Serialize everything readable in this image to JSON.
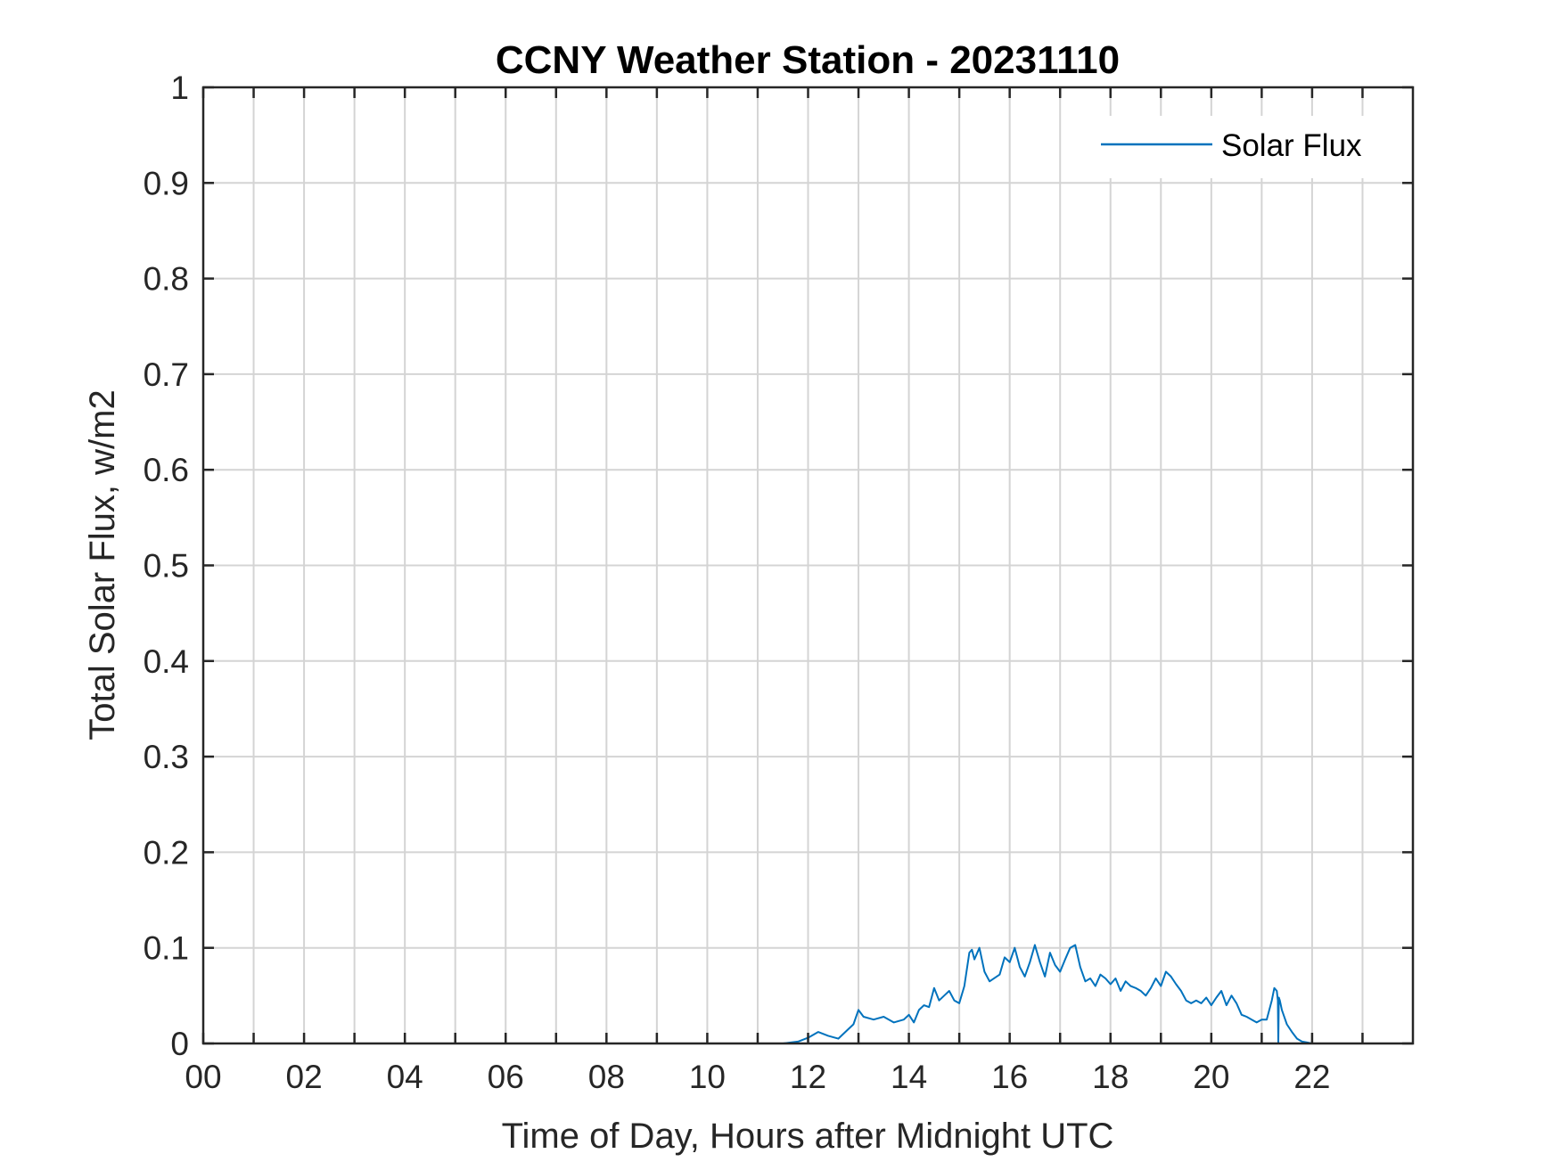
{
  "chart_data": {
    "type": "line",
    "title": "CCNY Weather Station - 20231110",
    "xlabel": "Time of Day, Hours after Midnight UTC",
    "ylabel": "Total Solar Flux, w/m2",
    "xlim": [
      0,
      24
    ],
    "ylim": [
      0,
      1
    ],
    "grid": true,
    "legend_position": "top-right",
    "x_tick_labels": [
      "00",
      "02",
      "04",
      "06",
      "08",
      "10",
      "12",
      "14",
      "16",
      "18",
      "20",
      "22"
    ],
    "y_tick_labels": [
      "0",
      "0.1",
      "0.2",
      "0.3",
      "0.4",
      "0.5",
      "0.6",
      "0.7",
      "0.8",
      "0.9",
      "1"
    ],
    "series": [
      {
        "name": "Solar Flux",
        "color": "#0072BD",
        "x": [
          0,
          11.5,
          11.8,
          12.0,
          12.2,
          12.4,
          12.6,
          12.8,
          12.9,
          13.0,
          13.1,
          13.3,
          13.5,
          13.7,
          13.9,
          14.0,
          14.1,
          14.2,
          14.3,
          14.4,
          14.5,
          14.6,
          14.7,
          14.8,
          14.9,
          15.0,
          15.1,
          15.2,
          15.25,
          15.3,
          15.4,
          15.5,
          15.6,
          15.8,
          15.9,
          16.0,
          16.1,
          16.2,
          16.3,
          16.4,
          16.5,
          16.6,
          16.7,
          16.8,
          16.9,
          17.0,
          17.1,
          17.2,
          17.3,
          17.4,
          17.5,
          17.6,
          17.7,
          17.8,
          17.9,
          18.0,
          18.1,
          18.2,
          18.3,
          18.4,
          18.5,
          18.6,
          18.7,
          18.8,
          18.9,
          19.0,
          19.1,
          19.2,
          19.3,
          19.4,
          19.5,
          19.6,
          19.7,
          19.8,
          19.9,
          20.0,
          20.1,
          20.2,
          20.3,
          20.4,
          20.5,
          20.6,
          20.7,
          20.8,
          20.9,
          21.0,
          21.1,
          21.2,
          21.25,
          21.3,
          21.32,
          21.33,
          21.34,
          21.36,
          21.4,
          21.5,
          21.6,
          21.7,
          21.8,
          21.9,
          22.0,
          24
        ],
        "y": [
          0,
          0,
          0.002,
          0.006,
          0.012,
          0.008,
          0.005,
          0.015,
          0.02,
          0.035,
          0.028,
          0.025,
          0.028,
          0.022,
          0.025,
          0.03,
          0.022,
          0.035,
          0.04,
          0.038,
          0.058,
          0.045,
          0.05,
          0.055,
          0.045,
          0.042,
          0.06,
          0.095,
          0.098,
          0.088,
          0.1,
          0.075,
          0.065,
          0.072,
          0.09,
          0.085,
          0.1,
          0.08,
          0.07,
          0.085,
          0.103,
          0.085,
          0.07,
          0.095,
          0.082,
          0.075,
          0.088,
          0.1,
          0.103,
          0.08,
          0.065,
          0.068,
          0.06,
          0.072,
          0.068,
          0.062,
          0.068,
          0.055,
          0.065,
          0.06,
          0.058,
          0.055,
          0.05,
          0.058,
          0.068,
          0.06,
          0.075,
          0.07,
          0.062,
          0.055,
          0.045,
          0.042,
          0.045,
          0.042,
          0.048,
          0.04,
          0.048,
          0.055,
          0.04,
          0.05,
          0.042,
          0.03,
          0.028,
          0.025,
          0.022,
          0.025,
          0.025,
          0.045,
          0.058,
          0.055,
          0.045,
          0.0,
          0.048,
          0.045,
          0.035,
          0.02,
          0.012,
          0.005,
          0.002,
          0.001,
          0,
          0
        ]
      }
    ]
  }
}
